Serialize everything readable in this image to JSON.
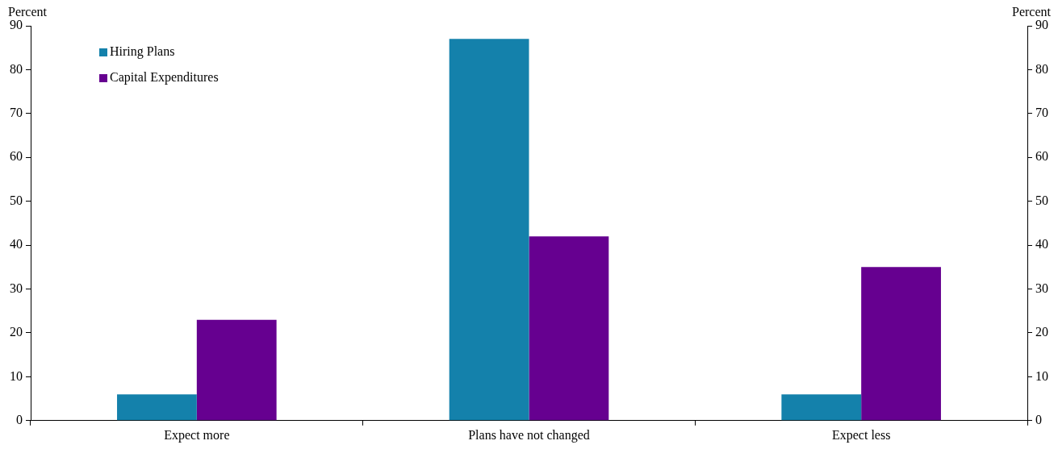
{
  "chart_data": {
    "type": "bar",
    "ylabel": "Percent",
    "y2label": "Percent",
    "categories": [
      "Expect more",
      "Plans have not changed",
      "Expect less"
    ],
    "series": [
      {
        "name": "Hiring Plans",
        "color": "#1481ab",
        "values": [
          6,
          87,
          6
        ]
      },
      {
        "name": "Capital Expenditures",
        "color": "#660090",
        "values": [
          23,
          42,
          35
        ]
      }
    ],
    "ylim": [
      0,
      90
    ],
    "yticks": [
      0,
      10,
      20,
      30,
      40,
      50,
      60,
      70,
      80,
      90
    ],
    "y2lim": [
      0,
      90
    ],
    "y2ticks": [
      0,
      10,
      20,
      30,
      40,
      50,
      60,
      70,
      80,
      90
    ],
    "grid": false,
    "legend": "top left"
  }
}
